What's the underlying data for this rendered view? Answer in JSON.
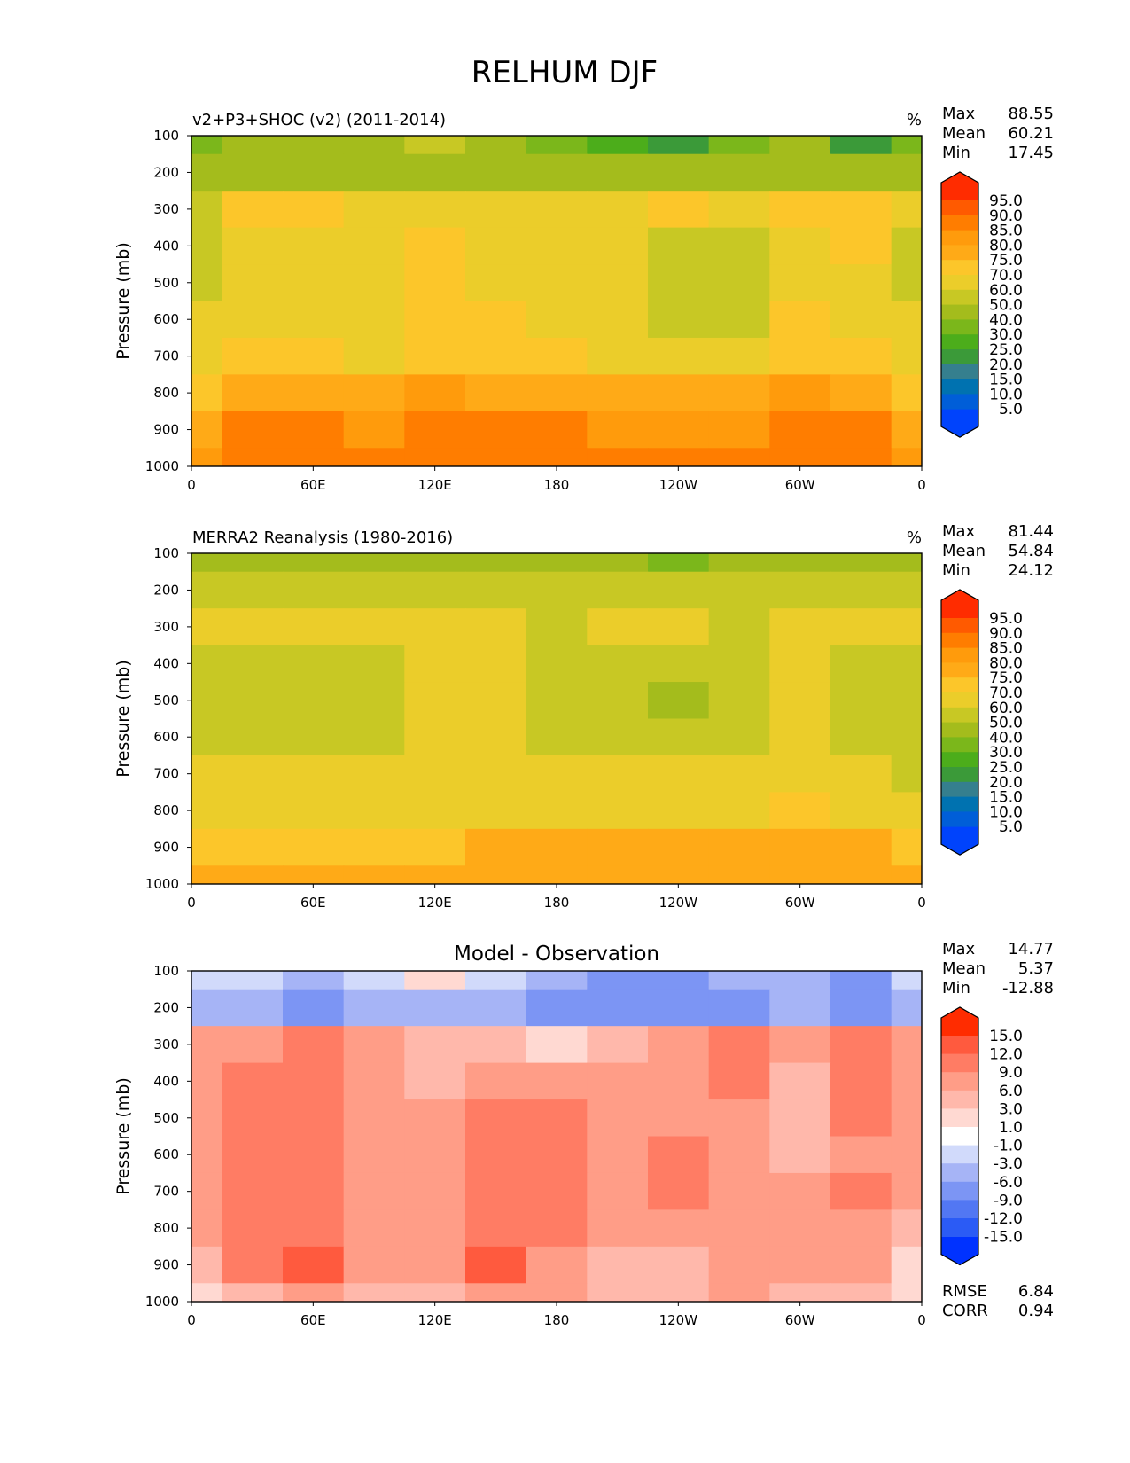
{
  "title": "RELHUM DJF",
  "colors": {
    "abs_levels": [
      "#0043fc",
      "#005ed8",
      "#0072b0",
      "#357f8e",
      "#3b9a39",
      "#4cad1b",
      "#7bb71b",
      "#a4bc1c",
      "#c8c824",
      "#ebcd2a",
      "#fcc62a",
      "#ffaa17",
      "#ff9b0c",
      "#ff7d00",
      "#ff5a00",
      "#ff2c00"
    ],
    "diff_levels": [
      "#0032ff",
      "#2b5bf5",
      "#5277f3",
      "#7c95f4",
      "#a6b4f6",
      "#d1dafb",
      "#ffffff",
      "#ffd9d2",
      "#ffb8ab",
      "#ff9d87",
      "#ff7c64",
      "#ff5a3e",
      "#ff2c00"
    ]
  },
  "chart_data": [
    {
      "type": "heatmap",
      "title": "v2+P3+SHOC (v2) (2011-2014)",
      "units": "%",
      "ylabel": "Pressure (mb)",
      "xlabel": "",
      "x_ticks": [
        "0",
        "60E",
        "120E",
        "180",
        "120W",
        "60W",
        "0"
      ],
      "y_ticks": [
        "100",
        "200",
        "300",
        "400",
        "500",
        "600",
        "700",
        "800",
        "900",
        "1000"
      ],
      "y_range": [
        100,
        1000
      ],
      "stats": [
        {
          "label": "Max",
          "value": "88.55"
        },
        {
          "label": "Mean",
          "value": "60.21"
        },
        {
          "label": "Min",
          "value": "17.45"
        }
      ],
      "colorbar_labels": [
        "95.0",
        "90.0",
        "85.0",
        "80.0",
        "75.0",
        "70.0",
        "60.0",
        "50.0",
        "40.0",
        "30.0",
        "25.0",
        "20.0",
        "15.0",
        "10.0",
        "5.0"
      ],
      "rows_longitude_deg": [
        0,
        30,
        60,
        90,
        120,
        150,
        180,
        210,
        240,
        270,
        300,
        330,
        360
      ],
      "grid": [
        [
          100,
          [
            30,
            40,
            40,
            40,
            50,
            40,
            30,
            25,
            20,
            30,
            40,
            20,
            30
          ]
        ],
        [
          200,
          [
            40,
            40,
            40,
            40,
            40,
            40,
            40,
            40,
            40,
            40,
            40,
            40,
            40
          ]
        ],
        [
          300,
          [
            50,
            70,
            70,
            60,
            60,
            60,
            60,
            60,
            70,
            60,
            70,
            70,
            60
          ]
        ],
        [
          400,
          [
            50,
            60,
            60,
            60,
            70,
            60,
            60,
            60,
            50,
            50,
            60,
            70,
            50
          ]
        ],
        [
          500,
          [
            50,
            60,
            60,
            60,
            70,
            60,
            60,
            60,
            50,
            50,
            60,
            60,
            50
          ]
        ],
        [
          600,
          [
            60,
            60,
            60,
            60,
            70,
            70,
            60,
            60,
            50,
            50,
            70,
            60,
            60
          ]
        ],
        [
          700,
          [
            60,
            70,
            70,
            60,
            70,
            70,
            70,
            60,
            60,
            60,
            70,
            70,
            60
          ]
        ],
        [
          800,
          [
            70,
            75,
            75,
            75,
            80,
            75,
            75,
            75,
            75,
            75,
            80,
            75,
            70
          ]
        ],
        [
          900,
          [
            75,
            85,
            85,
            80,
            85,
            85,
            85,
            80,
            80,
            80,
            85,
            85,
            75
          ]
        ],
        [
          1000,
          [
            80,
            85,
            85,
            85,
            85,
            85,
            85,
            85,
            85,
            85,
            85,
            85,
            80
          ]
        ]
      ]
    },
    {
      "type": "heatmap",
      "title": "MERRA2 Reanalysis (1980-2016)",
      "units": "%",
      "ylabel": "Pressure (mb)",
      "xlabel": "",
      "x_ticks": [
        "0",
        "60E",
        "120E",
        "180",
        "120W",
        "60W",
        "0"
      ],
      "y_ticks": [
        "100",
        "200",
        "300",
        "400",
        "500",
        "600",
        "700",
        "800",
        "900",
        "1000"
      ],
      "y_range": [
        100,
        1000
      ],
      "stats": [
        {
          "label": "Max",
          "value": "81.44"
        },
        {
          "label": "Mean",
          "value": "54.84"
        },
        {
          "label": "Min",
          "value": "24.12"
        }
      ],
      "colorbar_labels": [
        "95.0",
        "90.0",
        "85.0",
        "80.0",
        "75.0",
        "70.0",
        "60.0",
        "50.0",
        "40.0",
        "30.0",
        "25.0",
        "20.0",
        "15.0",
        "10.0",
        "5.0"
      ],
      "rows_longitude_deg": [
        0,
        30,
        60,
        90,
        120,
        150,
        180,
        210,
        240,
        270,
        300,
        330,
        360
      ],
      "grid": [
        [
          100,
          [
            40,
            40,
            40,
            40,
            40,
            40,
            40,
            40,
            30,
            40,
            40,
            40,
            40
          ]
        ],
        [
          200,
          [
            50,
            50,
            50,
            50,
            50,
            50,
            50,
            50,
            50,
            50,
            50,
            50,
            50
          ]
        ],
        [
          300,
          [
            60,
            60,
            60,
            60,
            60,
            60,
            50,
            60,
            60,
            50,
            60,
            60,
            60
          ]
        ],
        [
          400,
          [
            50,
            50,
            50,
            50,
            60,
            60,
            50,
            50,
            50,
            50,
            60,
            50,
            50
          ]
        ],
        [
          500,
          [
            50,
            50,
            50,
            50,
            60,
            60,
            50,
            50,
            40,
            50,
            60,
            50,
            50
          ]
        ],
        [
          600,
          [
            50,
            50,
            50,
            50,
            60,
            60,
            50,
            50,
            50,
            50,
            60,
            50,
            50
          ]
        ],
        [
          700,
          [
            60,
            60,
            60,
            60,
            60,
            60,
            60,
            60,
            60,
            60,
            60,
            60,
            50
          ]
        ],
        [
          800,
          [
            60,
            60,
            60,
            60,
            60,
            60,
            60,
            60,
            60,
            60,
            70,
            60,
            60
          ]
        ],
        [
          900,
          [
            70,
            70,
            70,
            70,
            70,
            75,
            75,
            75,
            75,
            75,
            75,
            75,
            70
          ]
        ],
        [
          1000,
          [
            75,
            75,
            75,
            75,
            75,
            75,
            75,
            75,
            75,
            75,
            75,
            75,
            75
          ]
        ]
      ]
    },
    {
      "type": "heatmap",
      "title": "Model - Observation",
      "units": "",
      "ylabel": "Pressure (mb)",
      "xlabel": "",
      "x_ticks": [
        "0",
        "60E",
        "120E",
        "180",
        "120W",
        "60W",
        "0"
      ],
      "y_ticks": [
        "100",
        "200",
        "300",
        "400",
        "500",
        "600",
        "700",
        "800",
        "900",
        "1000"
      ],
      "y_range": [
        100,
        1000
      ],
      "stats": [
        {
          "label": "Max",
          "value": "14.77"
        },
        {
          "label": "Mean",
          "value": "5.37"
        },
        {
          "label": "Min",
          "value": "-12.88"
        }
      ],
      "metrics": [
        {
          "label": "RMSE",
          "value": "6.84"
        },
        {
          "label": "CORR",
          "value": "0.94"
        }
      ],
      "colorbar_labels": [
        "15.0",
        "12.0",
        "9.0",
        "6.0",
        "3.0",
        "1.0",
        "-1.0",
        "-3.0",
        "-6.0",
        "-9.0",
        "-12.0",
        "-15.0"
      ],
      "rows_longitude_deg": [
        0,
        30,
        60,
        90,
        120,
        150,
        180,
        210,
        240,
        270,
        300,
        330,
        360
      ],
      "grid": [
        [
          100,
          [
            -3,
            -3,
            -6,
            -3,
            1,
            -3,
            -6,
            -9,
            -9,
            -6,
            -6,
            -9,
            -3
          ]
        ],
        [
          200,
          [
            -6,
            -6,
            -9,
            -6,
            -6,
            -6,
            -9,
            -9,
            -9,
            -9,
            -6,
            -9,
            -6
          ]
        ],
        [
          300,
          [
            6,
            6,
            9,
            6,
            3,
            3,
            1,
            3,
            6,
            9,
            6,
            9,
            6
          ]
        ],
        [
          400,
          [
            6,
            9,
            9,
            6,
            3,
            6,
            6,
            6,
            6,
            9,
            3,
            9,
            6
          ]
        ],
        [
          500,
          [
            6,
            9,
            9,
            6,
            6,
            9,
            9,
            6,
            6,
            6,
            3,
            9,
            6
          ]
        ],
        [
          600,
          [
            6,
            9,
            9,
            6,
            6,
            9,
            9,
            6,
            9,
            6,
            3,
            6,
            6
          ]
        ],
        [
          700,
          [
            6,
            9,
            9,
            6,
            6,
            9,
            9,
            6,
            9,
            6,
            6,
            9,
            6
          ]
        ],
        [
          800,
          [
            6,
            9,
            9,
            6,
            6,
            9,
            9,
            6,
            6,
            6,
            6,
            6,
            3
          ]
        ],
        [
          900,
          [
            3,
            9,
            12,
            6,
            6,
            12,
            6,
            3,
            3,
            6,
            6,
            6,
            1
          ]
        ],
        [
          1000,
          [
            1,
            3,
            6,
            3,
            3,
            6,
            6,
            3,
            3,
            6,
            3,
            3,
            1
          ]
        ]
      ]
    }
  ]
}
